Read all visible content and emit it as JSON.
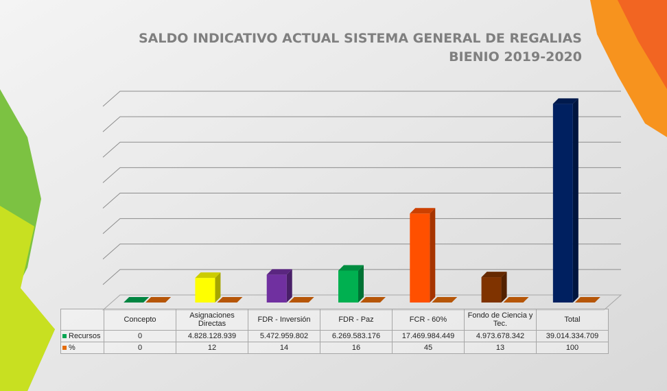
{
  "chart_data": {
    "type": "bar3d",
    "title": "SALDO INDICATIVO ACTUAL   SISTEMA GENERAL DE REGALIAS",
    "subtitle": "BIENIO 2019-2020",
    "categories": [
      "Concepto",
      "Asignaciones Directas",
      "FDR - Inversión",
      "FDR - Paz",
      "FCR - 60%",
      "Fondo de Ciencia y Tec.",
      "Total"
    ],
    "bar_colors": [
      "#00a651",
      "#ffff00",
      "#7030a0",
      "#00b050",
      "#ff5000",
      "#7f3300",
      "#002060"
    ],
    "series": [
      {
        "name": "Recursos",
        "color": "#00a651",
        "values": [
          0,
          4828128939,
          5472959802,
          6269583176,
          17469984449,
          4973678342,
          39014334709
        ],
        "value_labels": [
          "0",
          "4.828.128.939",
          "5.472.959.802",
          "6.269.583.176",
          "17.469.984.449",
          "4.973.678.342",
          "39.014.334.709"
        ]
      },
      {
        "name": "%",
        "color": "#e46c0a",
        "values": [
          0,
          12,
          14,
          16,
          45,
          13,
          100
        ]
      }
    ],
    "ylim": [
      0,
      40000000000
    ],
    "yticks": [
      0,
      5000000000,
      10000000000,
      15000000000,
      20000000000,
      25000000000,
      30000000000,
      35000000000,
      40000000000
    ],
    "grid": true
  }
}
